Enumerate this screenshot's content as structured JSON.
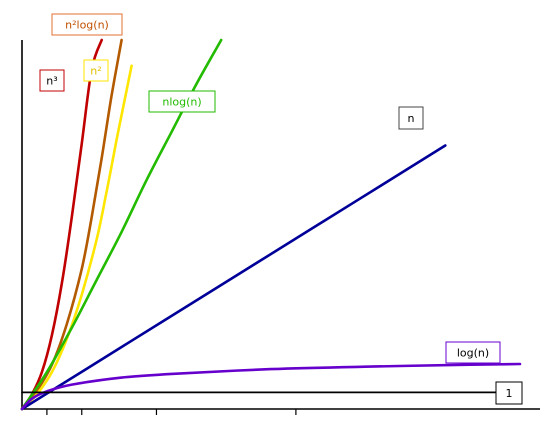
{
  "chart_data": {
    "type": "line",
    "title": "",
    "xlabel": "",
    "ylabel": "",
    "grid": false,
    "legend": "labels beside each curve",
    "xlim": [
      0,
      100
    ],
    "ylim": [
      0,
      100
    ],
    "x_ticks": [
      5,
      12,
      27,
      55
    ],
    "series": [
      {
        "name": "n³",
        "color": "#c00000",
        "x": [
          0,
          2,
          4,
          6,
          8,
          10,
          12,
          14,
          16
        ],
        "y": [
          0,
          4,
          10,
          20,
          34,
          52,
          72,
          92,
          100
        ]
      },
      {
        "name": "n²log(n)",
        "color": "#b35a00",
        "x": [
          0,
          3,
          6,
          9,
          12,
          14,
          16,
          18,
          20
        ],
        "y": [
          0,
          5,
          12,
          23,
          38,
          52,
          68,
          85,
          100
        ]
      },
      {
        "name": "n²",
        "color": "#ffe600",
        "x": [
          0,
          3,
          6,
          9,
          12,
          15,
          17,
          19,
          22
        ],
        "y": [
          0,
          4,
          10,
          19,
          31,
          46,
          59,
          73,
          93
        ]
      },
      {
        "name": "nlog(n)",
        "color": "#22bb00",
        "x": [
          0,
          5,
          10,
          15,
          20,
          25,
          30,
          35,
          40
        ],
        "y": [
          0,
          10,
          22,
          35,
          48,
          62,
          75,
          88,
          100
        ]
      },
      {
        "name": "n",
        "color": "#000099",
        "x": [
          0,
          20,
          40,
          60,
          80,
          85
        ],
        "y": [
          0,
          16.8,
          33.6,
          50.4,
          67.2,
          71.4
        ]
      },
      {
        "name": "log(n)",
        "color": "#6600cc",
        "x": [
          0,
          2,
          5,
          10,
          20,
          30,
          50,
          70,
          90,
          100
        ],
        "y": [
          0,
          2.8,
          4.8,
          6.6,
          8.5,
          9.5,
          10.8,
          11.5,
          12.0,
          12.2
        ]
      },
      {
        "name": "1",
        "color": "#000000",
        "x": [
          0,
          100
        ],
        "y": [
          4.5,
          4.5
        ]
      }
    ],
    "labels": [
      {
        "text": "n³",
        "series": "n³",
        "box_color": "#c00000",
        "text_color": "#000000"
      },
      {
        "text": "n²log(n)",
        "series": "n²log(n)",
        "box_color": "#e07030",
        "text_color": "#c05000"
      },
      {
        "text": "n²",
        "series": "n²",
        "box_color": "#ffe600",
        "text_color": "#e0c000"
      },
      {
        "text": "nlog(n)",
        "series": "nlog(n)",
        "box_color": "#22bb00",
        "text_color": "#22bb00"
      },
      {
        "text": "n",
        "series": "n",
        "box_color": "#444444",
        "text_color": "#000000"
      },
      {
        "text": "log(n)",
        "series": "log(n)",
        "box_color": "#6600cc",
        "text_color": "#000000"
      },
      {
        "text": "1",
        "series": "1",
        "box_color": "#000000",
        "text_color": "#000000"
      }
    ]
  }
}
